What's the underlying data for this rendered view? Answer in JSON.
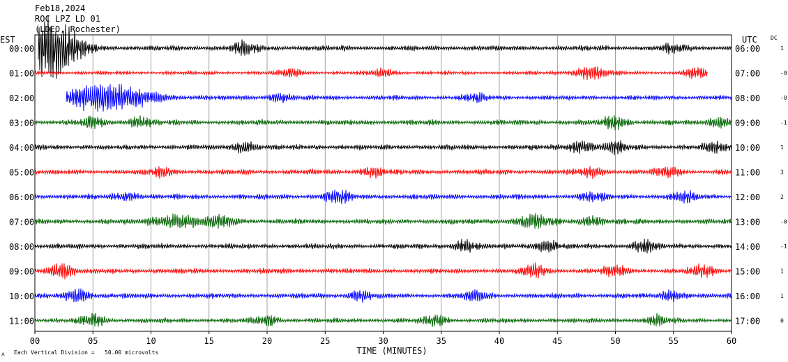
{
  "header": {
    "date": "Feb18,2024",
    "station": "ROC LPZ LD 01",
    "network": "(LDEO, Rochester)"
  },
  "footer": {
    "scale_note": "Each Vertical Division =   50.00 microvolts"
  },
  "chart_data": {
    "type": "line",
    "title": "",
    "xlabel": "TIME (MINUTES)",
    "left_axis_label": "EST",
    "right_axis_label": "UTC",
    "dc_label": "DC",
    "xlim": [
      0,
      60
    ],
    "x_ticks": [
      "00",
      "05",
      "10",
      "15",
      "20",
      "25",
      "30",
      "35",
      "40",
      "45",
      "50",
      "55",
      "60"
    ],
    "grid": "vertical lines every 5 minutes",
    "colors": [
      "#000000",
      "#ff0000",
      "#0000ff",
      "#006400"
    ],
    "rows": [
      {
        "est": "00:00",
        "utc": "06:00",
        "dc": "1",
        "color": "#000000",
        "start_min": 0.3,
        "end_min": 60,
        "amp": 5,
        "bursts": [
          [
            0.8,
            40,
            2.2
          ],
          [
            2.5,
            16,
            2
          ],
          [
            18,
            9,
            1
          ],
          [
            55,
            5,
            1
          ]
        ]
      },
      {
        "est": "01:00",
        "utc": "07:00",
        "dc": "-0",
        "color": "#ff0000",
        "start_min": 0,
        "end_min": 58,
        "amp": 3.5,
        "bursts": [
          [
            22,
            6,
            1
          ],
          [
            30,
            6,
            1
          ],
          [
            48,
            10,
            1.5
          ],
          [
            57,
            9,
            1
          ]
        ]
      },
      {
        "est": "02:00",
        "utc": "08:00",
        "dc": "-0",
        "color": "#0000ff",
        "start_min": 2.7,
        "end_min": 60,
        "amp": 4.5,
        "bursts": [
          [
            5,
            16,
            3
          ],
          [
            8,
            10,
            3
          ],
          [
            21,
            6,
            1
          ],
          [
            38,
            6,
            1
          ]
        ]
      },
      {
        "est": "03:00",
        "utc": "09:00",
        "dc": "-1",
        "color": "#006400",
        "start_min": 0,
        "end_min": 60,
        "amp": 5,
        "bursts": [
          [
            5,
            8,
            1
          ],
          [
            9,
            8,
            1
          ],
          [
            50,
            10,
            1
          ],
          [
            59,
            7,
            1
          ]
        ]
      },
      {
        "est": "04:00",
        "utc": "10:00",
        "dc": "1",
        "color": "#000000",
        "start_min": 0,
        "end_min": 60,
        "amp": 5,
        "bursts": [
          [
            18,
            8,
            1
          ],
          [
            47,
            9,
            1
          ],
          [
            50,
            9,
            1
          ],
          [
            58.5,
            8,
            1
          ]
        ]
      },
      {
        "est": "05:00",
        "utc": "11:00",
        "dc": "3",
        "color": "#ff0000",
        "start_min": 0,
        "end_min": 60,
        "amp": 5,
        "bursts": [
          [
            11,
            7,
            1
          ],
          [
            29,
            7,
            1
          ],
          [
            48,
            7,
            1
          ],
          [
            54.5,
            7,
            1
          ]
        ]
      },
      {
        "est": "06:00",
        "utc": "12:00",
        "dc": "2",
        "color": "#0000ff",
        "start_min": 0,
        "end_min": 60,
        "amp": 5,
        "bursts": [
          [
            26,
            11,
            1
          ],
          [
            8,
            6,
            1
          ],
          [
            48,
            7,
            1
          ],
          [
            56,
            7,
            1
          ]
        ]
      },
      {
        "est": "07:00",
        "utc": "13:00",
        "dc": "-0",
        "color": "#006400",
        "start_min": 0,
        "end_min": 60,
        "amp": 5,
        "bursts": [
          [
            12,
            9,
            2
          ],
          [
            16,
            8,
            1.5
          ],
          [
            43,
            9,
            1.5
          ],
          [
            48,
            8,
            1
          ]
        ]
      },
      {
        "est": "08:00",
        "utc": "14:00",
        "dc": "-1",
        "color": "#000000",
        "start_min": 0,
        "end_min": 60,
        "amp": 5,
        "bursts": [
          [
            37,
            8,
            1
          ],
          [
            44,
            9,
            1
          ],
          [
            52.5,
            9,
            1
          ]
        ]
      },
      {
        "est": "09:00",
        "utc": "15:00",
        "dc": "1",
        "color": "#ff0000",
        "start_min": 0,
        "end_min": 60,
        "amp": 5,
        "bursts": [
          [
            2.3,
            12,
            1
          ],
          [
            43,
            9,
            1
          ],
          [
            50,
            8,
            1
          ],
          [
            57.5,
            8,
            1
          ]
        ]
      },
      {
        "est": "10:00",
        "utc": "16:00",
        "dc": "1",
        "color": "#0000ff",
        "start_min": 0,
        "end_min": 60,
        "amp": 5,
        "bursts": [
          [
            3.7,
            11,
            1
          ],
          [
            28,
            7,
            1
          ],
          [
            38,
            8,
            1
          ],
          [
            55,
            7,
            1
          ]
        ]
      },
      {
        "est": "11:00",
        "utc": "17:00",
        "dc": "0",
        "color": "#006400",
        "start_min": 0,
        "end_min": 60,
        "amp": 4.5,
        "bursts": [
          [
            5,
            9,
            1
          ],
          [
            20,
            7,
            1
          ],
          [
            34.5,
            8,
            1
          ],
          [
            53.5,
            7,
            1
          ]
        ]
      }
    ]
  }
}
